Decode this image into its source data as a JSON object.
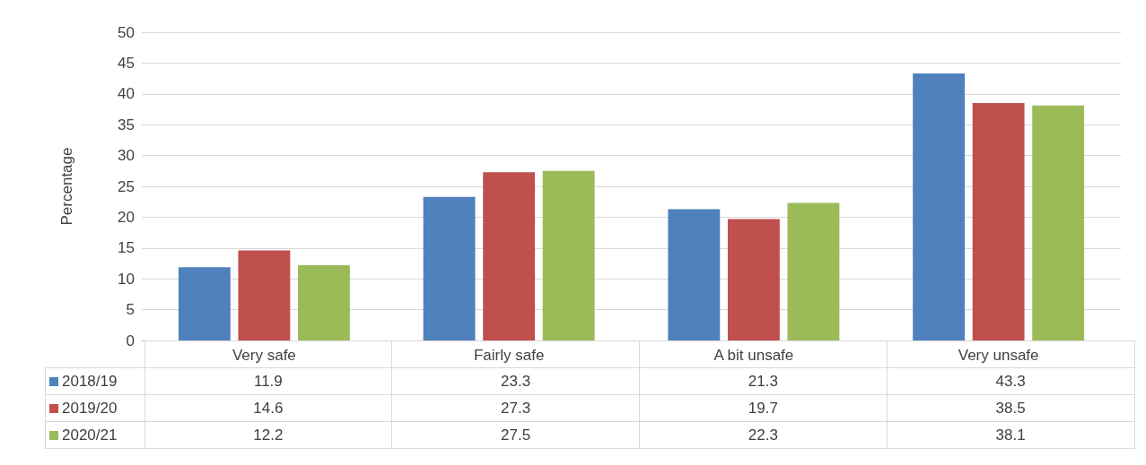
{
  "chart_data": {
    "type": "bar",
    "ylabel": "Percentage",
    "categories": [
      "Very safe",
      "Fairly safe",
      "A bit unsafe",
      "Very unsafe"
    ],
    "series": [
      {
        "name": "2018/19",
        "color": "#4f81bd",
        "values": [
          11.9,
          23.3,
          21.3,
          43.3
        ]
      },
      {
        "name": "2019/20",
        "color": "#c0504d",
        "values": [
          14.6,
          27.3,
          19.7,
          38.5
        ]
      },
      {
        "name": "2020/21",
        "color": "#9bbb59",
        "values": [
          12.2,
          27.5,
          22.3,
          38.1
        ]
      }
    ],
    "ylim": [
      0,
      50
    ],
    "yticks": [
      0,
      5,
      10,
      15,
      20,
      25,
      30,
      35,
      40,
      45,
      50
    ],
    "grid": "y",
    "legend": "bottom left",
    "data_labels": true
  }
}
